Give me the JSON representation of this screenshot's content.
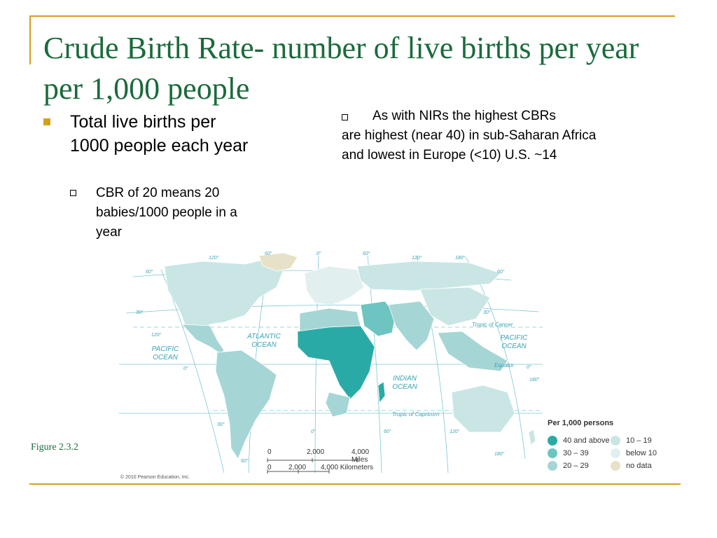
{
  "title": "Crude Birth Rate- number of live births per year per 1,000 people",
  "bullet_main": "Total live births per 1000 people each year",
  "bullet_sub": "CBR of 20 means 20 babies/1000 people in a year",
  "right_first": "As with NIRs the highest CBRs",
  "right_rest": "are highest (near 40) in sub-Saharan Africa and lowest in Europe (<10) U.S. ~14",
  "figure_label": "Figure 2.3.2",
  "credit": "© 2010 Pearson Education, Inc.",
  "map": {
    "labels": {
      "atlantic": "ATLANTIC OCEAN",
      "pacific_w": "PACIFIC OCEAN",
      "pacific_e": "PACIFIC OCEAN",
      "indian": "INDIAN OCEAN",
      "cancer": "Tropic of Cancer",
      "equator": "Equator",
      "capricorn": "Tropic of Capricorn"
    },
    "degrees": {
      "top_120w": "120°",
      "top_60w": "60°",
      "top_0": "0°",
      "top_60e": "60°",
      "top_120e": "120°",
      "top_180": "180°",
      "lat60_l": "60°",
      "lat60_r": "60°",
      "lat30_l": "30°",
      "lat30_r": "30°",
      "lon120_l": "120°",
      "lat0_l": "0°",
      "lat0_r": "0°",
      "right180": "180°",
      "lat30s": "30°",
      "bot_0": "0°",
      "bot_60": "60°",
      "bot_120": "120°",
      "bot_60s": "60°",
      "bot_180": "180°"
    },
    "legend": {
      "title": "Per 1,000 persons",
      "items": [
        {
          "label": "40 and above",
          "color": "#2aaaa6"
        },
        {
          "label": "30 – 39",
          "color": "#6ec4c0"
        },
        {
          "label": "20 – 29",
          "color": "#a5d6d5"
        },
        {
          "label": "10 – 19",
          "color": "#c9e6e5"
        },
        {
          "label": "below 10",
          "color": "#e1f0ef"
        },
        {
          "label": "no data",
          "color": "#e7e2c7"
        }
      ]
    },
    "scale": {
      "miles": [
        "0",
        "2,000",
        "4,000 Miles"
      ],
      "km": [
        "0",
        "2,000",
        "4,000 Kilometers"
      ]
    }
  }
}
